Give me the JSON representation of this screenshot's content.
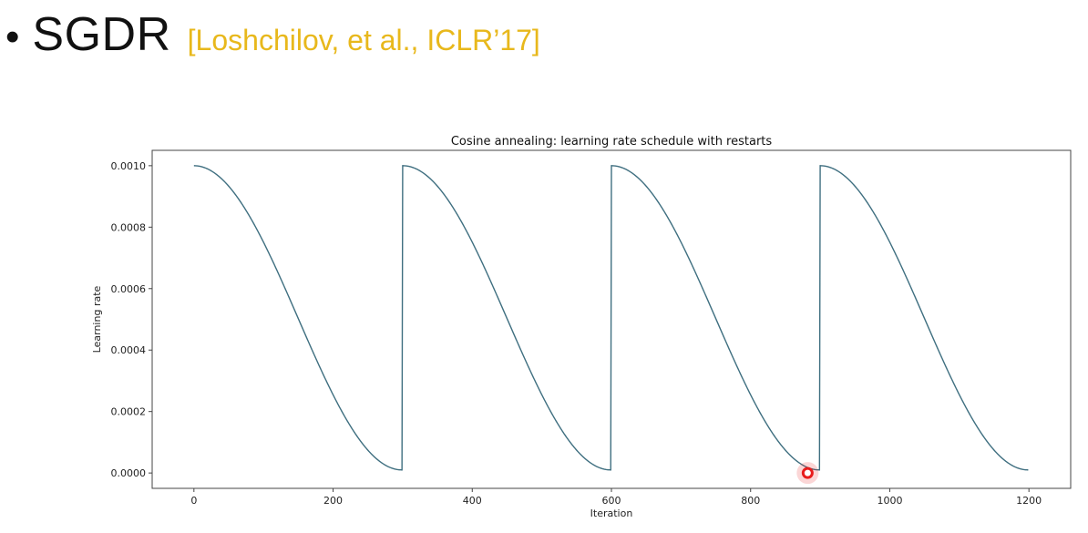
{
  "slide": {
    "bullet": "•",
    "title": "SGDR",
    "citation": "[Loshchilov, et al., ICLR’17]",
    "citation_color": "#e8b81c"
  },
  "chart_data": {
    "type": "line",
    "title": "Cosine annealing: learning rate schedule with restarts",
    "xlabel": "Iteration",
    "ylabel": "Learning rate",
    "xlim": [
      -60,
      1260
    ],
    "ylim": [
      -5e-05,
      0.00105
    ],
    "xticks": [
      0,
      200,
      400,
      600,
      800,
      1000,
      1200
    ],
    "xtick_labels": [
      "0",
      "200",
      "400",
      "600",
      "800",
      "1000",
      "1200"
    ],
    "yticks": [
      0.0,
      0.0002,
      0.0004,
      0.0006,
      0.0008,
      0.001
    ],
    "ytick_labels": [
      "0.0000",
      "0.0002",
      "0.0004",
      "0.0006",
      "0.0008",
      "0.0010"
    ],
    "grid": false,
    "line_color": "#3f6f80",
    "schedule": {
      "max_lr": 0.001,
      "min_lr": 1e-05,
      "cycle_length": 300,
      "cycles": 4,
      "start": 0,
      "end": 1200
    },
    "marker": {
      "x": 882,
      "y": 0.0,
      "color": "#e81c1c"
    }
  }
}
